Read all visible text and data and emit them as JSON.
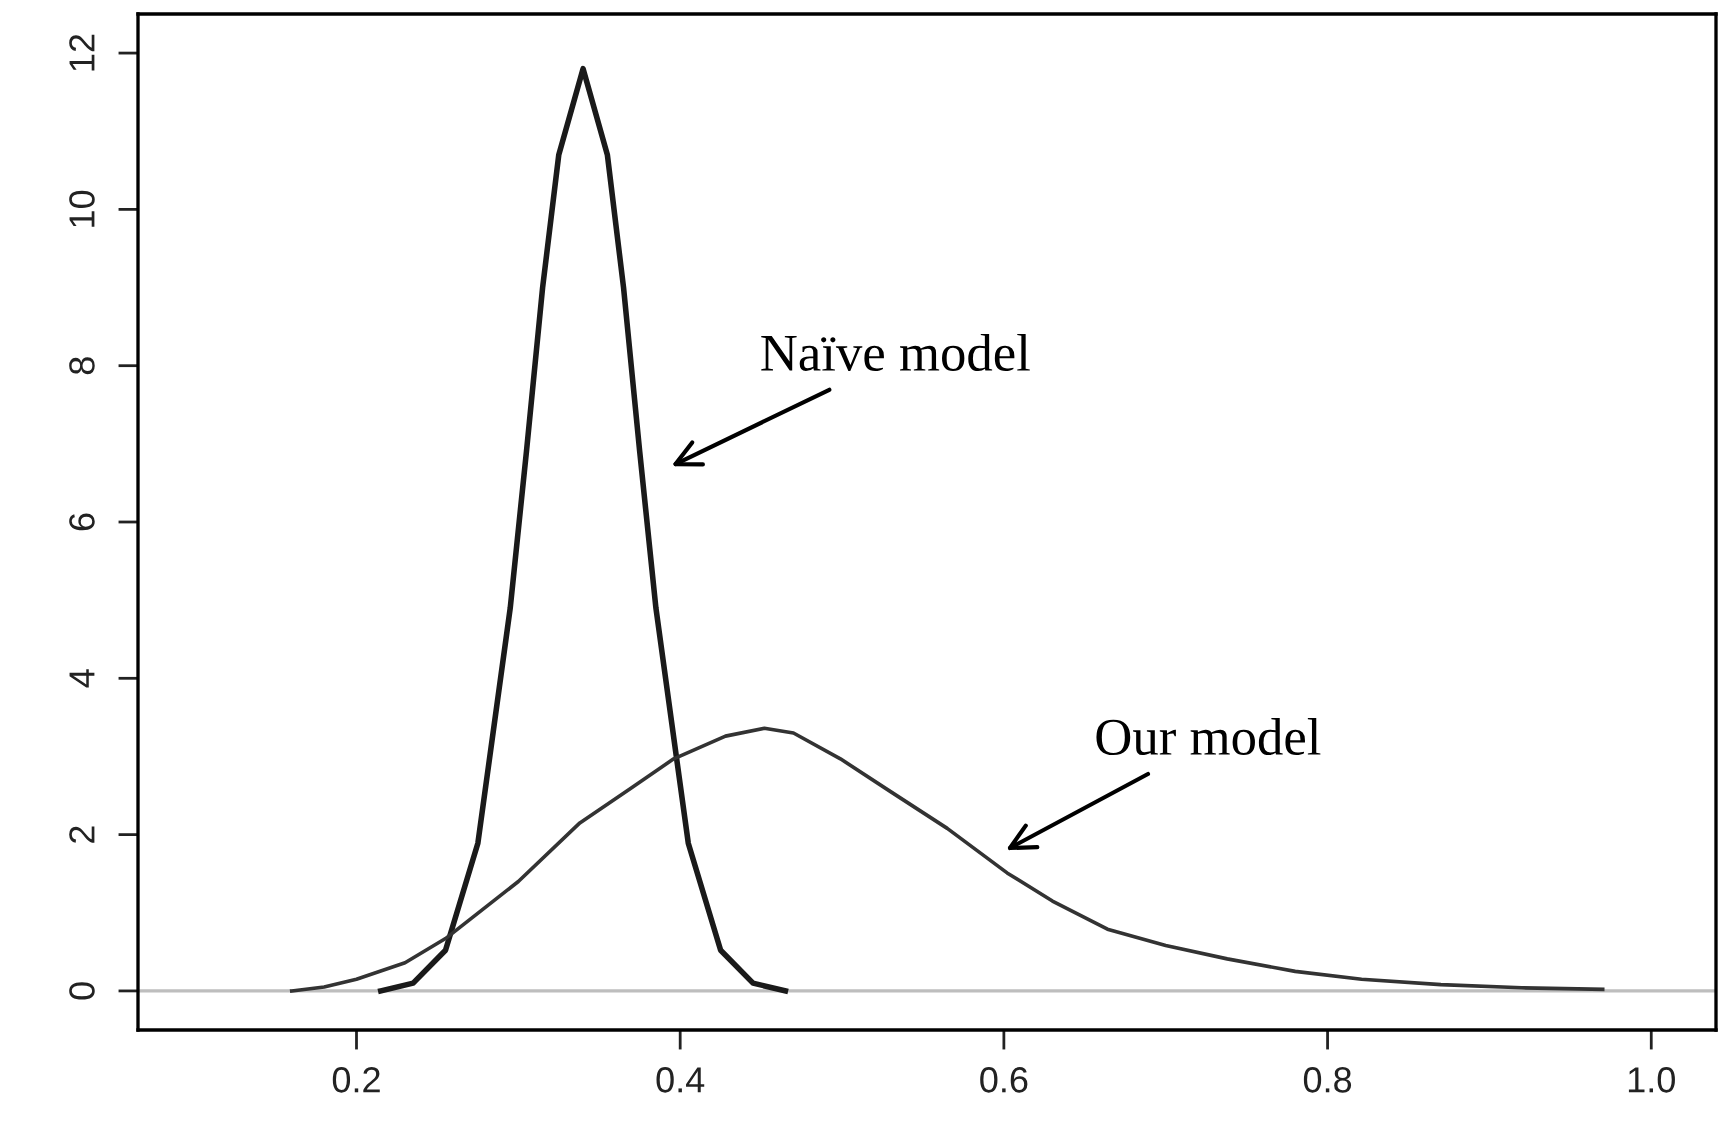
{
  "chart_data": {
    "type": "line",
    "xlim": [
      0.065,
      1.04
    ],
    "ylim": [
      -0.5,
      12.5
    ],
    "xticks": [
      {
        "value": 0.2,
        "label": "0.2"
      },
      {
        "value": 0.4,
        "label": "0.4"
      },
      {
        "value": 0.6,
        "label": "0.6"
      },
      {
        "value": 0.8,
        "label": "0.8"
      },
      {
        "value": 1.0,
        "label": "1.0"
      }
    ],
    "yticks": [
      0,
      2,
      4,
      6,
      8,
      10,
      12
    ],
    "grid": false,
    "legend": false,
    "marker": "none",
    "line_style": "solid",
    "series": [
      {
        "color": "#1a1a1a",
        "x": [
          0.215,
          0.235,
          0.255,
          0.275,
          0.295,
          0.305,
          0.315,
          0.325,
          0.34,
          0.355,
          0.365,
          0.375,
          0.385,
          0.405,
          0.425,
          0.445,
          0.465
        ],
        "values": [
          0,
          0.1,
          0.52,
          1.89,
          4.9,
          6.9,
          9.0,
          10.7,
          11.8,
          10.7,
          9.0,
          6.9,
          4.9,
          1.89,
          0.52,
          0.1,
          0
        ]
      },
      {
        "color": "#333333",
        "x": [
          0.16,
          0.18,
          0.2,
          0.23,
          0.255,
          0.3,
          0.338,
          0.37,
          0.396,
          0.428,
          0.452,
          0.47,
          0.499,
          0.53,
          0.565,
          0.602,
          0.63,
          0.664,
          0.7,
          0.738,
          0.78,
          0.821,
          0.87,
          0.92,
          0.97
        ],
        "values": [
          0,
          0.05,
          0.15,
          0.36,
          0.67,
          1.4,
          2.15,
          2.6,
          2.97,
          3.26,
          3.36,
          3.3,
          2.97,
          2.55,
          2.08,
          1.51,
          1.15,
          0.79,
          0.58,
          0.41,
          0.25,
          0.15,
          0.08,
          0.04,
          0.02
        ]
      }
    ],
    "ref_lines": [
      {
        "axis": "y",
        "value": 0,
        "color": "#bebebe"
      }
    ],
    "annotations": [
      "Naïve model",
      "Our model"
    ]
  }
}
